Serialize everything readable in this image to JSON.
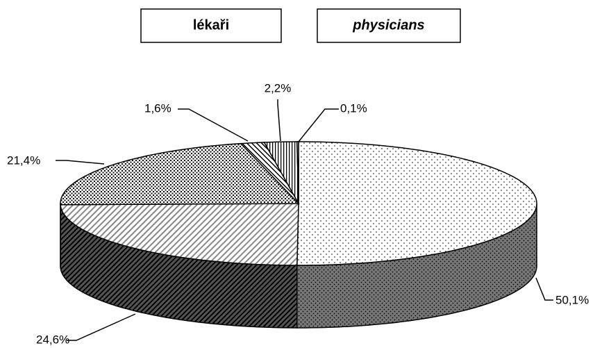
{
  "chart_data": {
    "type": "pie3d",
    "titles": [
      "lékaři",
      "physicians"
    ],
    "categories": [
      null,
      null,
      null,
      null,
      null,
      null
    ],
    "values": [
      50.1,
      24.6,
      21.4,
      1.6,
      2.2,
      0.1
    ],
    "value_labels": [
      "50,1%",
      "24,6%",
      "21,4%",
      "1,6%",
      "2,2%",
      "0,1%"
    ]
  }
}
